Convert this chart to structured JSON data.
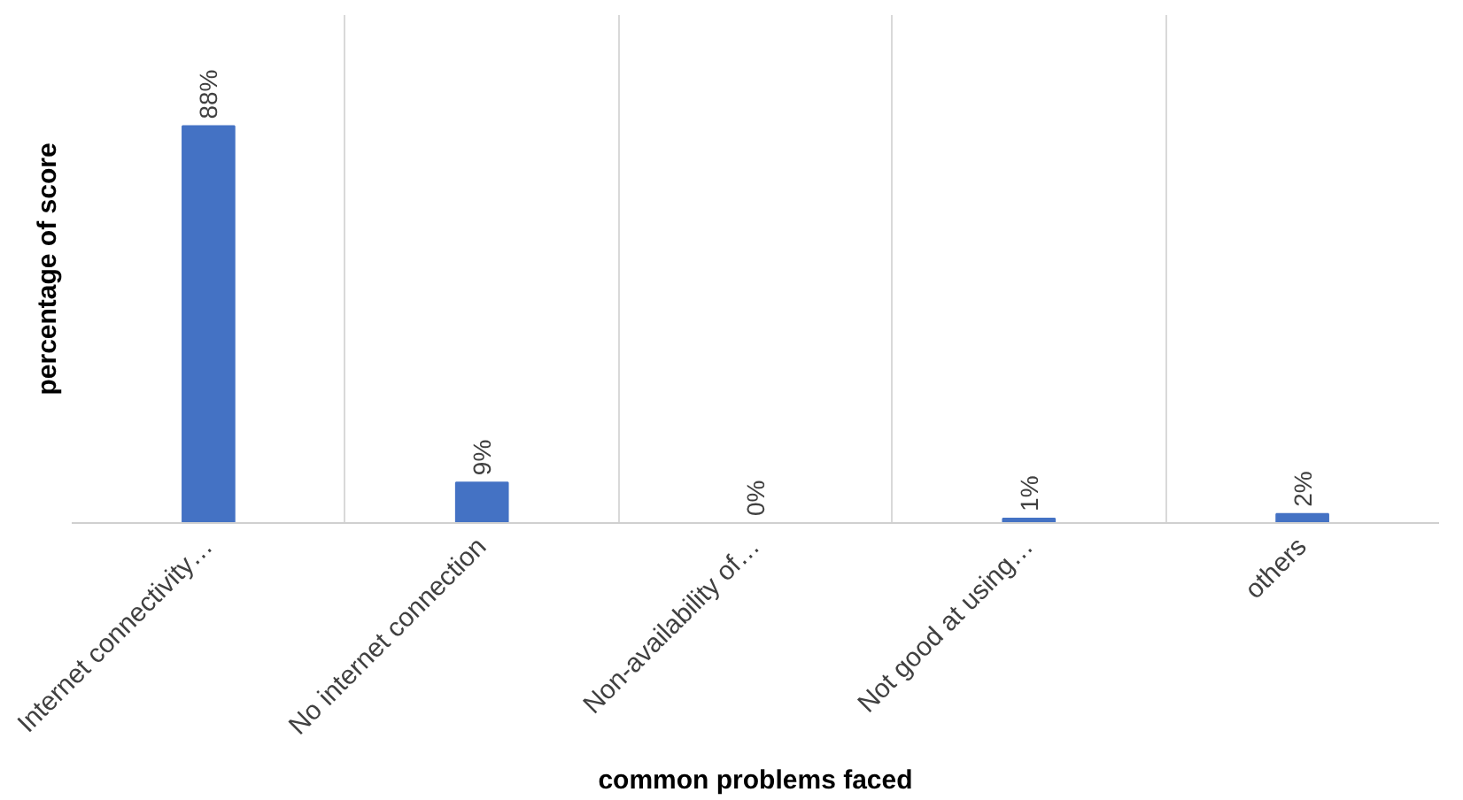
{
  "chart_data": {
    "type": "bar",
    "xlabel": "common problems faced",
    "ylabel": "percentage of score",
    "categories": [
      "Internet connectivity…",
      "No internet connection",
      "Non-availability of…",
      "Not good at using…",
      "others"
    ],
    "values": [
      88,
      9,
      0,
      1,
      2
    ],
    "value_labels": [
      "88%",
      "9%",
      "0%",
      "1%",
      "2%"
    ],
    "color": "#4472c4",
    "grid": "x"
  }
}
